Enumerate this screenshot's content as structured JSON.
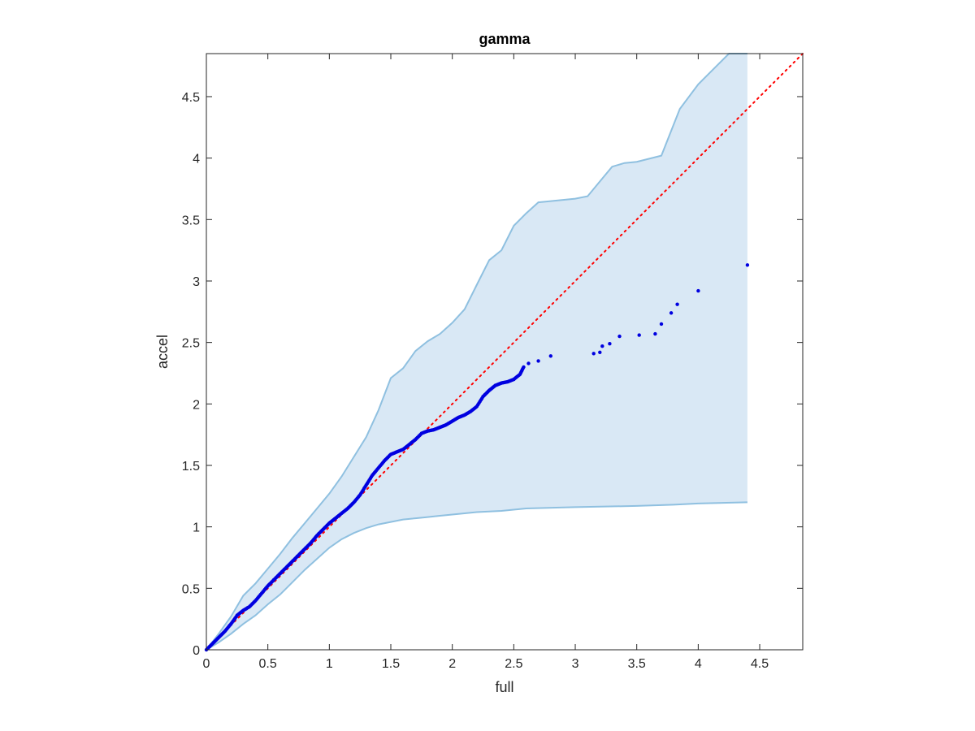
{
  "chart_data": {
    "type": "scatter",
    "title": "gamma",
    "xlabel": "full",
    "ylabel": "accel",
    "xlim": [
      0,
      4.85
    ],
    "ylim": [
      0,
      4.85
    ],
    "xticks": [
      "0",
      "0.5",
      "1",
      "1.5",
      "2",
      "2.5",
      "3",
      "3.5",
      "4",
      "4.5"
    ],
    "yticks": [
      "0",
      "0.5",
      "1",
      "1.5",
      "2",
      "2.5",
      "3",
      "3.5",
      "4",
      "4.5"
    ],
    "grid": false,
    "colors": {
      "band_fill": "#d9e8f5",
      "band_edge": "#8fc0e0",
      "points": "#0000e0",
      "reference": "#ff0000",
      "axes": "#262626"
    },
    "reference_line": {
      "style": "dotted",
      "from": [
        0,
        0
      ],
      "to": [
        4.85,
        4.85
      ]
    },
    "confidence_band": {
      "upper": [
        [
          0,
          0
        ],
        [
          0.1,
          0.13
        ],
        [
          0.2,
          0.27
        ],
        [
          0.3,
          0.44
        ],
        [
          0.4,
          0.54
        ],
        [
          0.5,
          0.66
        ],
        [
          0.6,
          0.78
        ],
        [
          0.7,
          0.91
        ],
        [
          0.8,
          1.03
        ],
        [
          0.9,
          1.15
        ],
        [
          1.0,
          1.27
        ],
        [
          1.1,
          1.41
        ],
        [
          1.2,
          1.57
        ],
        [
          1.3,
          1.73
        ],
        [
          1.4,
          1.95
        ],
        [
          1.5,
          2.21
        ],
        [
          1.6,
          2.29
        ],
        [
          1.7,
          2.43
        ],
        [
          1.8,
          2.51
        ],
        [
          1.9,
          2.57
        ],
        [
          2.0,
          2.66
        ],
        [
          2.1,
          2.77
        ],
        [
          2.2,
          2.97
        ],
        [
          2.3,
          3.17
        ],
        [
          2.4,
          3.25
        ],
        [
          2.5,
          3.45
        ],
        [
          2.6,
          3.55
        ],
        [
          2.7,
          3.64
        ],
        [
          2.8,
          3.65
        ],
        [
          2.9,
          3.66
        ],
        [
          3.0,
          3.67
        ],
        [
          3.1,
          3.69
        ],
        [
          3.2,
          3.81
        ],
        [
          3.3,
          3.93
        ],
        [
          3.4,
          3.96
        ],
        [
          3.5,
          3.97
        ],
        [
          3.7,
          4.02
        ],
        [
          3.85,
          4.4
        ],
        [
          4.0,
          4.6
        ],
        [
          4.15,
          4.75
        ],
        [
          4.25,
          4.85
        ],
        [
          4.4,
          4.85
        ]
      ],
      "lower": [
        [
          0,
          0
        ],
        [
          0.1,
          0.06
        ],
        [
          0.2,
          0.13
        ],
        [
          0.3,
          0.21
        ],
        [
          0.4,
          0.28
        ],
        [
          0.5,
          0.37
        ],
        [
          0.6,
          0.45
        ],
        [
          0.7,
          0.55
        ],
        [
          0.8,
          0.65
        ],
        [
          0.9,
          0.74
        ],
        [
          1.0,
          0.83
        ],
        [
          1.1,
          0.9
        ],
        [
          1.2,
          0.95
        ],
        [
          1.3,
          0.99
        ],
        [
          1.4,
          1.02
        ],
        [
          1.5,
          1.04
        ],
        [
          1.6,
          1.06
        ],
        [
          1.7,
          1.07
        ],
        [
          1.8,
          1.08
        ],
        [
          1.9,
          1.09
        ],
        [
          2.0,
          1.1
        ],
        [
          2.2,
          1.12
        ],
        [
          2.4,
          1.13
        ],
        [
          2.6,
          1.15
        ],
        [
          3.0,
          1.16
        ],
        [
          3.5,
          1.17
        ],
        [
          3.8,
          1.18
        ],
        [
          4.0,
          1.19
        ],
        [
          4.4,
          1.2
        ]
      ]
    },
    "series": [
      {
        "points": [
          [
            0.0,
            0.0
          ],
          [
            0.05,
            0.05
          ],
          [
            0.1,
            0.1
          ],
          [
            0.15,
            0.15
          ],
          [
            0.2,
            0.21
          ],
          [
            0.25,
            0.28
          ],
          [
            0.3,
            0.32
          ],
          [
            0.35,
            0.35
          ],
          [
            0.4,
            0.4
          ],
          [
            0.45,
            0.46
          ],
          [
            0.5,
            0.52
          ],
          [
            0.55,
            0.57
          ],
          [
            0.6,
            0.62
          ],
          [
            0.65,
            0.67
          ],
          [
            0.7,
            0.72
          ],
          [
            0.75,
            0.77
          ],
          [
            0.8,
            0.82
          ],
          [
            0.85,
            0.87
          ],
          [
            0.9,
            0.93
          ],
          [
            0.95,
            0.98
          ],
          [
            1.0,
            1.03
          ],
          [
            1.05,
            1.07
          ],
          [
            1.1,
            1.11
          ],
          [
            1.15,
            1.15
          ],
          [
            1.2,
            1.2
          ],
          [
            1.25,
            1.26
          ],
          [
            1.3,
            1.34
          ],
          [
            1.35,
            1.42
          ],
          [
            1.4,
            1.48
          ],
          [
            1.45,
            1.54
          ],
          [
            1.5,
            1.59
          ],
          [
            1.55,
            1.61
          ],
          [
            1.6,
            1.63
          ],
          [
            1.65,
            1.67
          ],
          [
            1.7,
            1.71
          ],
          [
            1.75,
            1.76
          ],
          [
            1.8,
            1.78
          ],
          [
            1.85,
            1.79
          ],
          [
            1.9,
            1.81
          ],
          [
            1.95,
            1.83
          ],
          [
            2.0,
            1.86
          ],
          [
            2.05,
            1.89
          ],
          [
            2.1,
            1.91
          ],
          [
            2.15,
            1.94
          ],
          [
            2.2,
            1.98
          ],
          [
            2.25,
            2.06
          ],
          [
            2.3,
            2.11
          ],
          [
            2.35,
            2.15
          ],
          [
            2.4,
            2.17
          ],
          [
            2.45,
            2.18
          ],
          [
            2.5,
            2.2
          ],
          [
            2.55,
            2.24
          ],
          [
            2.58,
            2.3
          ],
          [
            2.62,
            2.33
          ],
          [
            2.7,
            2.35
          ],
          [
            2.8,
            2.39
          ],
          [
            3.15,
            2.41
          ],
          [
            3.2,
            2.42
          ],
          [
            3.22,
            2.47
          ],
          [
            3.28,
            2.49
          ],
          [
            3.36,
            2.55
          ],
          [
            3.52,
            2.56
          ],
          [
            3.65,
            2.57
          ],
          [
            3.7,
            2.65
          ],
          [
            3.78,
            2.74
          ],
          [
            3.83,
            2.81
          ],
          [
            4.0,
            2.92
          ],
          [
            4.4,
            3.13
          ]
        ]
      }
    ]
  }
}
